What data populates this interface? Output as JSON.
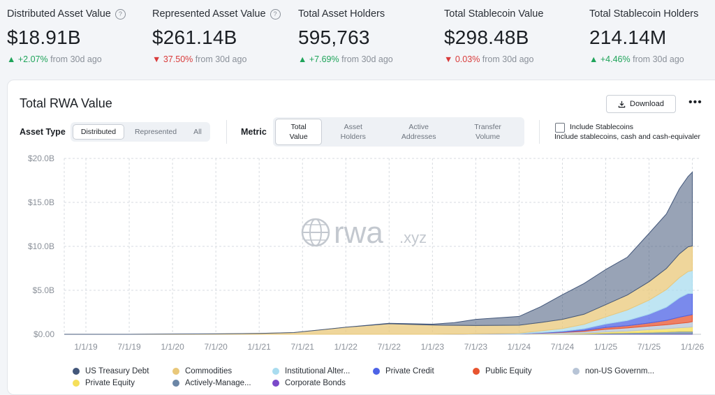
{
  "kpis": [
    {
      "label": "Distributed Asset Value",
      "help": true,
      "value": "$18.91B",
      "arrow": "▲",
      "delta": "+2.07%",
      "direction": "up",
      "suffix": "from 30d ago"
    },
    {
      "label": "Represented Asset Value",
      "help": true,
      "value": "$261.14B",
      "arrow": "▼",
      "delta": "37.50%",
      "direction": "down",
      "suffix": "from 30d ago"
    },
    {
      "label": "Total Asset Holders",
      "help": false,
      "value": "595,763",
      "arrow": "▲",
      "delta": "+7.69%",
      "direction": "up",
      "suffix": "from 30d ago"
    },
    {
      "label": "Total Stablecoin Value",
      "help": false,
      "value": "$298.48B",
      "arrow": "▼",
      "delta": "0.03%",
      "direction": "down",
      "suffix": "from 30d ago"
    },
    {
      "label": "Total Stablecoin Holders",
      "help": false,
      "value": "214.14M",
      "arrow": "▲",
      "delta": "+4.46%",
      "direction": "up",
      "suffix": "from 30d ago"
    }
  ],
  "card": {
    "title": "Total RWA Value",
    "download_label": "Download",
    "more_glyph": "•••"
  },
  "filters": {
    "asset_type_label": "Asset Type",
    "asset_type_options": [
      "Distributed",
      "Represented",
      "All"
    ],
    "asset_type_selected": "Distributed",
    "metric_label": "Metric",
    "metric_options": [
      [
        "Total",
        "Value"
      ],
      [
        "Asset",
        "Holders"
      ],
      [
        "Active",
        "Addresses"
      ],
      [
        "Transfer",
        "Volume"
      ]
    ],
    "metric_selected": 0,
    "stablecoin_label": "Include Stablecoins",
    "stablecoin_sub": "Include stablecoins, cash and cash-equivaler",
    "stablecoin_checked": false
  },
  "watermark": {
    "main": "rwa",
    "suffix": ".xyz"
  },
  "colors": {
    "us_treasury": "#43577a",
    "commodities": "#e9c87a",
    "institutional": "#a9dcef",
    "private_credit": "#4d63e6",
    "public_equity": "#e8542f",
    "non_us_gov": "#b7c4d6",
    "private_equity": "#f5df5a",
    "actively_managed": "#6b86a6",
    "corporate_bonds": "#7a49c9",
    "up": "#1fa45a",
    "down": "#d93b3b"
  },
  "chart_data": {
    "type": "area",
    "title": "Total RWA Value",
    "xlabel": "",
    "ylabel": "",
    "ylim": [
      0,
      20
    ],
    "y_ticks": [
      "$0.00",
      "$5.0B",
      "$10.0B",
      "$15.0B",
      "$20.0B"
    ],
    "x_ticks": [
      "1/1/19",
      "7/1/19",
      "1/1/20",
      "7/1/20",
      "1/1/21",
      "7/1/21",
      "1/1/22",
      "7/1/22",
      "1/1/23",
      "7/1/23",
      "1/1/24",
      "7/1/24",
      "1/1/25",
      "7/1/25",
      "1/1/26"
    ],
    "x": [
      2018.75,
      2019.5,
      2020.5,
      2021.0,
      2021.4,
      2021.5,
      2021.75,
      2022.0,
      2022.5,
      2023.0,
      2023.25,
      2023.5,
      2024.0,
      2024.25,
      2024.5,
      2024.75,
      2025.0,
      2025.25,
      2025.5,
      2025.7,
      2025.85,
      2025.95,
      2026.0
    ],
    "series": [
      {
        "name": "Corporate Bonds",
        "color_key": "corporate_bonds",
        "values": [
          0,
          0,
          0,
          0,
          0,
          0,
          0,
          0,
          0,
          0,
          0,
          0,
          0,
          0,
          0,
          0.01,
          0.02,
          0.02,
          0.03,
          0.03,
          0.04,
          0.04,
          0.04
        ]
      },
      {
        "name": "Actively-Managed Strategies",
        "color_key": "actively_managed",
        "values": [
          0,
          0,
          0,
          0,
          0,
          0,
          0,
          0,
          0,
          0,
          0,
          0,
          0,
          0,
          0.02,
          0.04,
          0.1,
          0.15,
          0.2,
          0.25,
          0.3,
          0.3,
          0.3
        ]
      },
      {
        "name": "Private Equity",
        "color_key": "private_equity",
        "values": [
          0,
          0,
          0,
          0,
          0,
          0,
          0,
          0,
          0,
          0,
          0,
          0,
          0,
          0.02,
          0.04,
          0.08,
          0.15,
          0.2,
          0.3,
          0.35,
          0.4,
          0.45,
          0.5
        ]
      },
      {
        "name": "non-US Government Debt",
        "color_key": "non_us_gov",
        "values": [
          0,
          0,
          0,
          0,
          0,
          0,
          0,
          0,
          0,
          0,
          0.02,
          0.05,
          0.08,
          0.1,
          0.15,
          0.2,
          0.3,
          0.35,
          0.4,
          0.45,
          0.5,
          0.55,
          0.6
        ]
      },
      {
        "name": "Public Equity",
        "color_key": "public_equity",
        "values": [
          0,
          0,
          0,
          0,
          0,
          0,
          0,
          0,
          0,
          0,
          0,
          0,
          0,
          0.02,
          0.04,
          0.1,
          0.2,
          0.25,
          0.35,
          0.5,
          0.7,
          0.8,
          0.8
        ]
      },
      {
        "name": "Private Credit",
        "color_key": "private_credit",
        "values": [
          0,
          0,
          0,
          0,
          0,
          0,
          0,
          0,
          0,
          0,
          0,
          0,
          0,
          0.05,
          0.1,
          0.2,
          0.4,
          0.6,
          1.0,
          1.5,
          2.2,
          2.5,
          2.4
        ]
      },
      {
        "name": "Institutional Alternative Funds",
        "color_key": "institutional",
        "values": [
          0,
          0,
          0,
          0,
          0,
          0,
          0,
          0,
          0,
          0,
          0,
          0,
          0.05,
          0.2,
          0.3,
          0.5,
          0.8,
          1.2,
          1.6,
          2.0,
          2.3,
          2.5,
          2.6
        ]
      },
      {
        "name": "Commodities",
        "color_key": "commodities",
        "values": [
          0,
          0,
          0.05,
          0.1,
          0.2,
          0.3,
          0.55,
          0.8,
          1.2,
          1.05,
          1.0,
          0.95,
          0.9,
          0.95,
          1.05,
          1.15,
          1.4,
          1.7,
          2.1,
          2.4,
          2.7,
          2.8,
          2.8
        ]
      },
      {
        "name": "US Treasury Debt",
        "color_key": "us_treasury",
        "values": [
          0,
          0,
          0,
          0,
          0,
          0,
          0,
          0,
          0.05,
          0.1,
          0.3,
          0.7,
          1.0,
          1.8,
          2.8,
          3.5,
          4.0,
          4.3,
          5.5,
          6.2,
          7.4,
          8.0,
          8.4
        ]
      }
    ],
    "legend": [
      {
        "name": "US Treasury Debt",
        "color_key": "us_treasury"
      },
      {
        "name": "Commodities",
        "color_key": "commodities"
      },
      {
        "name": "Institutional Alter...",
        "color_key": "institutional"
      },
      {
        "name": "Private Credit",
        "color_key": "private_credit"
      },
      {
        "name": "Public Equity",
        "color_key": "public_equity"
      },
      {
        "name": "non-US Governm...",
        "color_key": "non_us_gov"
      },
      {
        "name": "Private Equity",
        "color_key": "private_equity"
      },
      {
        "name": "Actively-Manage...",
        "color_key": "actively_managed"
      },
      {
        "name": "Corporate Bonds",
        "color_key": "corporate_bonds"
      }
    ]
  }
}
